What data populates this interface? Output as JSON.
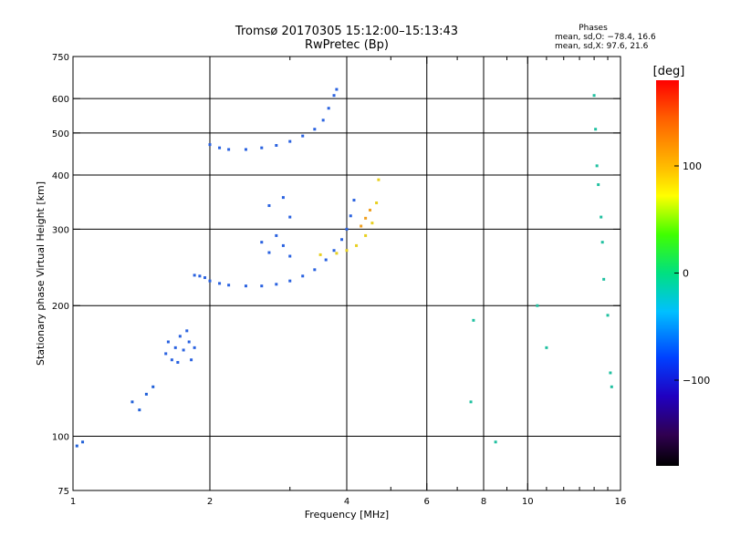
{
  "chart_data": {
    "type": "scatter",
    "title": "Tromsø 20170305 15:12:00–15:13:43",
    "subtitle": "RwPretec (Bp)",
    "xlabel": "Frequency [MHz]",
    "ylabel": "Stationary phase Virtual Height [km]",
    "x_scale": "log",
    "y_scale": "log",
    "xlim": [
      1,
      16
    ],
    "ylim": [
      75,
      750
    ],
    "x_ticks": [
      1,
      2,
      4,
      6,
      8,
      10,
      16
    ],
    "x_tick_labels": [
      "1",
      "2",
      "4",
      "6",
      "8",
      "10",
      "16"
    ],
    "x_minor_ticks": [
      3,
      5,
      7,
      9,
      11,
      12,
      13,
      14,
      15
    ],
    "x_gridlines": [
      2,
      4,
      6,
      8,
      10
    ],
    "y_ticks": [
      75,
      100,
      200,
      300,
      400,
      500,
      600,
      750
    ],
    "y_tick_labels": [
      "75",
      "100",
      "200",
      "300",
      "400",
      "500",
      "600",
      "750"
    ],
    "y_gridlines": [
      100,
      200,
      300,
      400,
      500,
      600
    ],
    "stats": {
      "heading": "Phases",
      "line_o": "mean, sd,O: −78.4, 16.6",
      "line_x": "mean, sd,X:  97.6, 21.6"
    },
    "colorbar": {
      "unit": "[deg]",
      "range": [
        -180,
        180
      ],
      "ticks": [
        100,
        0,
        -100
      ],
      "tick_labels": [
        "100",
        "0",
        "−100"
      ]
    },
    "series": [
      {
        "name": "O-mode low trace",
        "phase_deg": -100,
        "color": "#2a62e0",
        "points": [
          [
            1.85,
            235
          ],
          [
            1.9,
            234
          ],
          [
            1.95,
            232
          ],
          [
            2.0,
            228
          ],
          [
            2.1,
            225
          ],
          [
            2.2,
            223
          ],
          [
            2.4,
            222
          ],
          [
            2.6,
            222
          ],
          [
            2.8,
            224
          ],
          [
            3.0,
            228
          ],
          [
            3.2,
            234
          ],
          [
            3.4,
            242
          ],
          [
            3.6,
            255
          ],
          [
            3.75,
            268
          ],
          [
            3.9,
            284
          ],
          [
            4.0,
            300
          ],
          [
            4.08,
            322
          ],
          [
            4.15,
            350
          ]
        ]
      },
      {
        "name": "O-mode F2 trace",
        "phase_deg": -100,
        "color": "#2a62e0",
        "points": [
          [
            2.0,
            470
          ],
          [
            2.1,
            462
          ],
          [
            2.2,
            458
          ],
          [
            2.4,
            458
          ],
          [
            2.6,
            462
          ],
          [
            2.8,
            468
          ],
          [
            3.0,
            478
          ],
          [
            3.2,
            492
          ],
          [
            3.4,
            510
          ],
          [
            3.55,
            535
          ],
          [
            3.65,
            570
          ],
          [
            3.75,
            610
          ],
          [
            3.8,
            630
          ]
        ]
      },
      {
        "name": "X-mode trace",
        "phase_deg": 100,
        "color": "#e8d020",
        "points": [
          [
            3.5,
            262
          ],
          [
            3.8,
            264
          ],
          [
            4.0,
            268
          ],
          [
            4.2,
            275
          ],
          [
            4.4,
            290
          ],
          [
            4.55,
            310
          ],
          [
            4.65,
            345
          ],
          [
            4.7,
            390
          ]
        ]
      },
      {
        "name": "X-mode trace (orange)",
        "phase_deg": 130,
        "color": "#f0a020",
        "points": [
          [
            4.3,
            305
          ],
          [
            4.4,
            318
          ],
          [
            4.5,
            332
          ]
        ]
      },
      {
        "name": "Spread echoes 1.6–1.9 MHz",
        "phase_deg": -100,
        "color": "#2a62e0",
        "points": [
          [
            1.6,
            155
          ],
          [
            1.62,
            165
          ],
          [
            1.65,
            150
          ],
          [
            1.68,
            160
          ],
          [
            1.7,
            148
          ],
          [
            1.72,
            170
          ],
          [
            1.75,
            158
          ],
          [
            1.78,
            175
          ],
          [
            1.8,
            165
          ],
          [
            1.82,
            150
          ],
          [
            1.85,
            160
          ]
        ]
      },
      {
        "name": "Spread echoes 2.5–3.1 MHz",
        "phase_deg": -100,
        "color": "#2a62e0",
        "points": [
          [
            2.6,
            280
          ],
          [
            2.7,
            265
          ],
          [
            2.8,
            290
          ],
          [
            2.9,
            275
          ],
          [
            3.0,
            260
          ],
          [
            2.7,
            340
          ],
          [
            2.9,
            355
          ],
          [
            3.0,
            320
          ]
        ]
      },
      {
        "name": "Low echoes",
        "phase_deg": -95,
        "color": "#2060d8",
        "points": [
          [
            1.35,
            120
          ],
          [
            1.4,
            115
          ],
          [
            1.45,
            125
          ],
          [
            1.5,
            130
          ],
          [
            1.02,
            95
          ],
          [
            1.05,
            97
          ]
        ]
      },
      {
        "name": "Scattered high-frequency echoes",
        "phase_deg": 0,
        "color": "#20c0a0",
        "points": [
          [
            7.5,
            120
          ],
          [
            7.6,
            185
          ],
          [
            8.5,
            97
          ],
          [
            10.5,
            200
          ],
          [
            11,
            160
          ],
          [
            14,
            610
          ],
          [
            14.1,
            510
          ],
          [
            14.2,
            420
          ],
          [
            14.3,
            380
          ],
          [
            14.5,
            320
          ],
          [
            14.6,
            280
          ],
          [
            14.7,
            230
          ],
          [
            15,
            190
          ],
          [
            15.2,
            140
          ],
          [
            15.3,
            130
          ]
        ]
      }
    ]
  }
}
